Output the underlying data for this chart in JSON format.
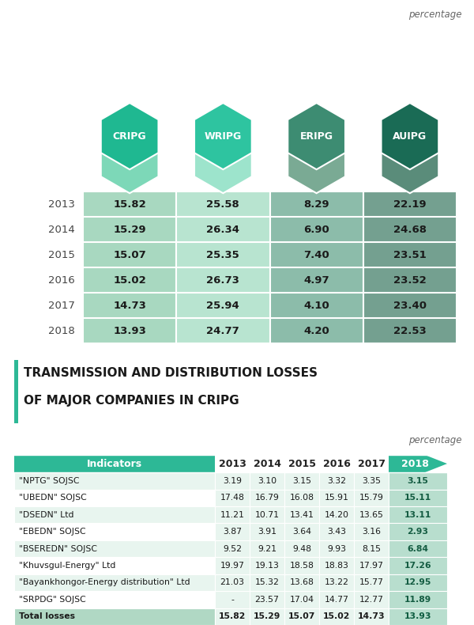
{
  "percentage_label": "percentage",
  "top_section": {
    "headers": [
      "CRIPG",
      "WRIPG",
      "ERIPG",
      "AUIPG"
    ],
    "hex_colors_top": [
      "#1fb891",
      "#2ec4a0",
      "#3d8c72",
      "#1a6b55"
    ],
    "hex_colors_bot": [
      "#7dd8b8",
      "#9de4cc",
      "#7aaa94",
      "#5a8c7a"
    ],
    "years": [
      "2013",
      "2014",
      "2015",
      "2016",
      "2017",
      "2018"
    ],
    "data": [
      [
        15.82,
        25.58,
        8.29,
        22.19
      ],
      [
        15.29,
        26.34,
        6.9,
        24.68
      ],
      [
        15.07,
        25.35,
        7.4,
        23.51
      ],
      [
        15.02,
        26.73,
        4.97,
        23.52
      ],
      [
        14.73,
        25.94,
        4.1,
        23.4
      ],
      [
        13.93,
        24.77,
        4.2,
        22.53
      ]
    ],
    "col_bg_colors": [
      "#a8d8c0",
      "#b8e4d0",
      "#8cbcaa",
      "#74a090"
    ]
  },
  "section2_title_line1": "TRANSMISSION AND DISTRIBUTION LOSSES",
  "section2_title_line2": "OF MAJOR COMPANIES IN CRIPG",
  "bottom_section": {
    "indicators": [
      "\"NPTG\" SOJSC",
      "\"UBEDN\" SOJSC",
      "\"DSEDN\" Ltd",
      "\"EBEDN\" SOJSC",
      "\"BSEREDN\" SOJSC",
      "\"Khuvsgul-Energy\" Ltd",
      "\"Bayankhongor-Energy distribution\" Ltd",
      "\"SRPDG\" SOJSC",
      "Total losses"
    ],
    "years": [
      "2013",
      "2014",
      "2015",
      "2016",
      "2017",
      "2018"
    ],
    "data": [
      [
        "3.19",
        "3.10",
        "3.15",
        "3.32",
        "3.35",
        "3.15"
      ],
      [
        "17.48",
        "16.79",
        "16.08",
        "15.91",
        "15.79",
        "15.11"
      ],
      [
        "11.21",
        "10.71",
        "13.41",
        "14.20",
        "13.65",
        "13.11"
      ],
      [
        "3.87",
        "3.91",
        "3.64",
        "3.43",
        "3.16",
        "2.93"
      ],
      [
        "9.52",
        "9.21",
        "9.48",
        "9.93",
        "8.15",
        "6.84"
      ],
      [
        "19.97",
        "19.13",
        "18.58",
        "18.83",
        "17.97",
        "17.26"
      ],
      [
        "21.03",
        "15.32",
        "13.68",
        "13.22",
        "15.77",
        "12.95"
      ],
      [
        "-",
        "23.57",
        "17.04",
        "14.77",
        "12.77",
        "11.89"
      ],
      [
        "15.82",
        "15.29",
        "15.07",
        "15.02",
        "14.73",
        "13.93"
      ]
    ],
    "header_color": "#2db896",
    "year_2018_bg": "#2db896",
    "total_row_color": "#b0d8c4",
    "row_alt_color": "#e8f5ef",
    "row_base_color": "#ffffff",
    "data_col_bg": "#e8f5ef"
  }
}
